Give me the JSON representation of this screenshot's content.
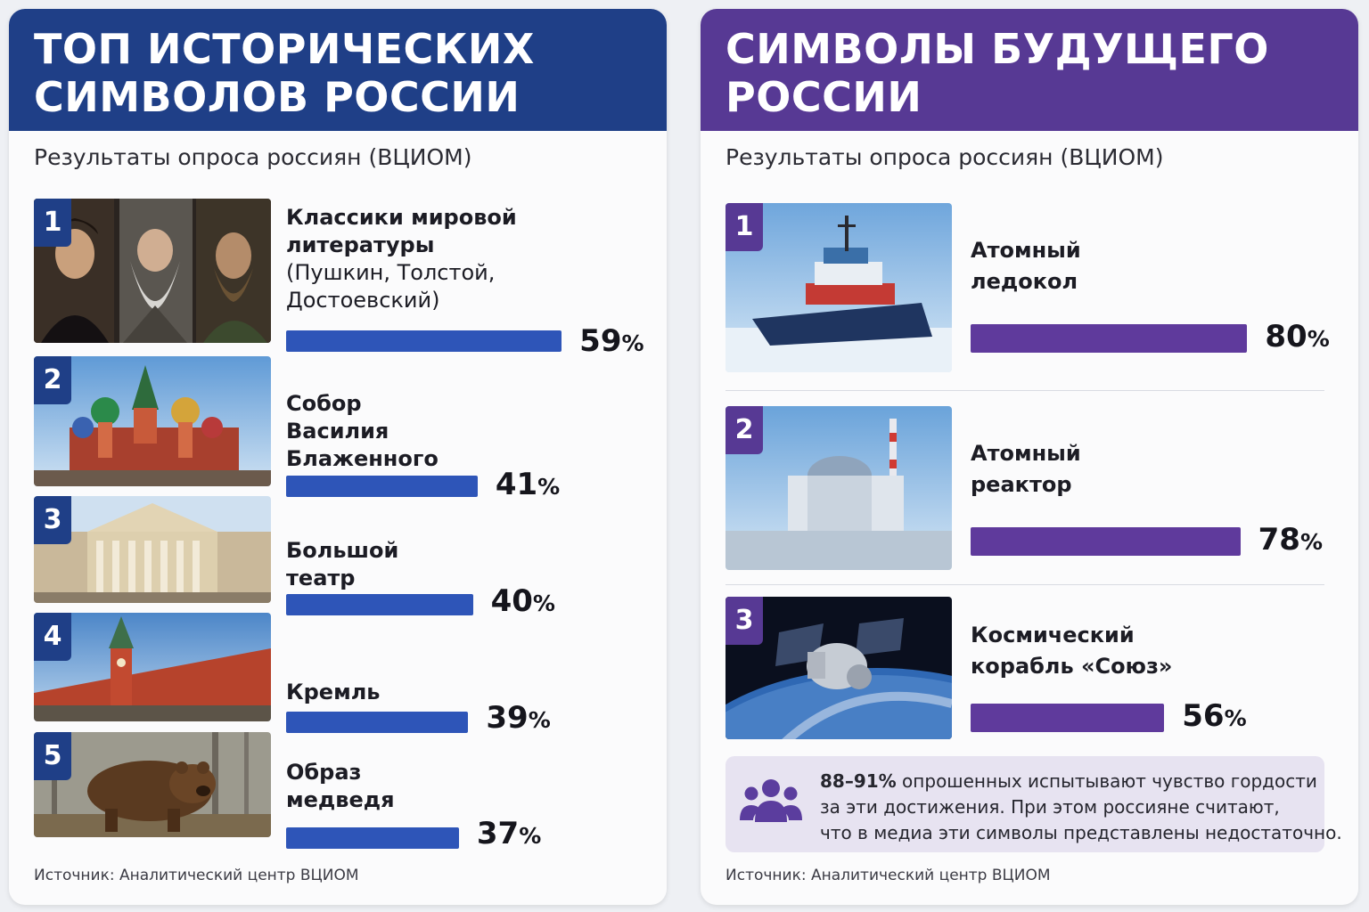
{
  "colors": {
    "left_header": "#1f3f87",
    "left_bar": "#2e55b8",
    "right_header": "#573994",
    "right_bar": "#5f3a9c",
    "callout_bg": "#e7e3f1",
    "callout_icon": "#5b3d9e"
  },
  "left": {
    "title_lines": [
      "ТОП ИСТОРИЧЕСКИХ",
      "СИМВОЛОВ РОССИИ"
    ],
    "subtitle": "Результаты опроса россиян (ВЦИОМ)",
    "source": "Источник: Аналитический центр ВЦИОМ",
    "items": [
      {
        "rank": "1",
        "bold_lines": [
          "Классики мировой",
          "литературы"
        ],
        "normal_lines": [
          "(Пушкин, Толстой,",
          "Достоевский)"
        ],
        "value": 59,
        "icon": "writers-portrait-photo"
      },
      {
        "rank": "2",
        "bold_lines": [
          "Собор",
          "Василия",
          "Блаженного"
        ],
        "normal_lines": [],
        "value": 41,
        "icon": "cathedral-photo"
      },
      {
        "rank": "3",
        "bold_lines": [
          "Большой",
          "театр"
        ],
        "normal_lines": [],
        "value": 40,
        "icon": "theatre-photo"
      },
      {
        "rank": "4",
        "bold_lines": [
          "Кремль"
        ],
        "normal_lines": [],
        "value": 39,
        "icon": "kremlin-photo"
      },
      {
        "rank": "5",
        "bold_lines": [
          "Образ",
          "медведя"
        ],
        "normal_lines": [],
        "value": 37,
        "icon": "bear-photo"
      }
    ]
  },
  "right": {
    "title_lines": [
      "СИМВОЛЫ БУДУЩЕГО",
      "РОССИИ"
    ],
    "subtitle": "Результаты опроса россиян (ВЦИОМ)",
    "source": "Источник: Аналитический центр ВЦИОМ",
    "items": [
      {
        "rank": "1",
        "bold_lines": [
          "Атомный",
          "ледокол"
        ],
        "value": 80,
        "icon": "icebreaker-photo"
      },
      {
        "rank": "2",
        "bold_lines": [
          "Атомный",
          "реактор"
        ],
        "value": 78,
        "icon": "reactor-photo"
      },
      {
        "rank": "3",
        "bold_lines": [
          "Космический",
          "корабль «Союз»"
        ],
        "value": 56,
        "icon": "spacecraft-photo"
      }
    ],
    "callout": {
      "highlight": "88–91%",
      "line1_rest": " опрошенных испытывают чувство гордости",
      "line2": "за эти достижения. При этом россияне считают,",
      "line3": "что в медиа эти символы представлены недостаточно.",
      "icon": "people-group-icon"
    }
  },
  "chart_data": [
    {
      "type": "bar",
      "title": "ТОП ИСТОРИЧЕСКИХ СИМВОЛОВ РОССИИ",
      "subtitle": "Результаты опроса россиян (ВЦИОМ)",
      "categories": [
        "Классики мировой литературы (Пушкин, Толстой, Достоевский)",
        "Собор Василия Блаженного",
        "Большой театр",
        "Кремль",
        "Образ медведя"
      ],
      "values": [
        59,
        41,
        40,
        39,
        37
      ],
      "unit": "%"
    },
    {
      "type": "bar",
      "title": "СИМВОЛЫ БУДУЩЕГО РОССИИ",
      "subtitle": "Результаты опроса россиян (ВЦИОМ)",
      "categories": [
        "Атомный ледокол",
        "Атомный реактор",
        "Космический корабль «Союз»"
      ],
      "values": [
        80,
        78,
        56
      ],
      "unit": "%"
    }
  ]
}
